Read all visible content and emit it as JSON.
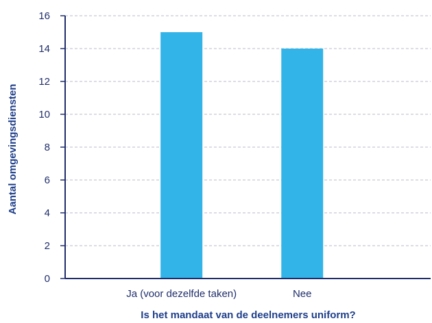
{
  "chart_data": {
    "type": "bar",
    "categories": [
      "Ja (voor dezelfde taken)",
      "Nee"
    ],
    "values": [
      15,
      14
    ],
    "title": "",
    "xlabel": "Is het mandaat van de deelnemers uniform?",
    "ylabel": "Aantal omgevingsdiensten",
    "ylim": [
      0,
      16
    ],
    "yticks": [
      "0",
      "2",
      "4",
      "6",
      "8",
      "10",
      "12",
      "14",
      "16"
    ],
    "grid": true,
    "legend": "none",
    "colors": {
      "bar": "#33b4e8",
      "axis": "#1f2d6b",
      "grid": "#b8b8c8",
      "text": "#1f2d6b",
      "title": "#1f3f8a"
    }
  }
}
